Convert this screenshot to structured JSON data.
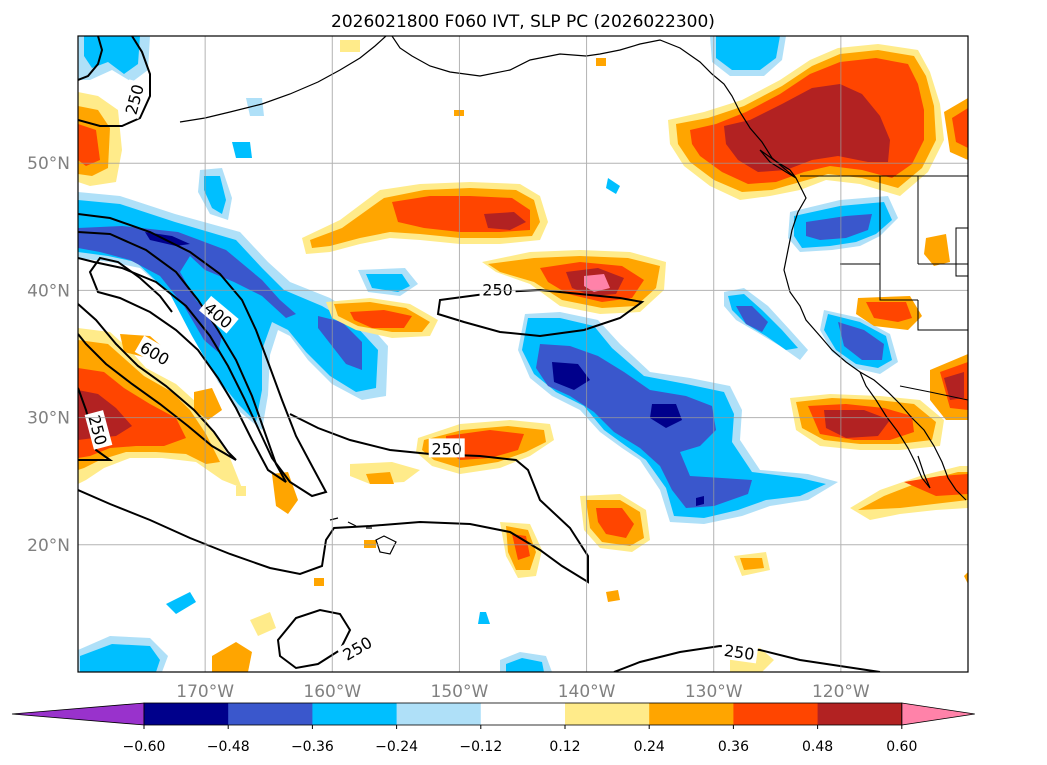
{
  "title": "2026021800 F060 IVT, SLP PC (2026022300)",
  "map": {
    "lon_range": [
      -180,
      -110
    ],
    "lat_range": [
      10,
      60
    ],
    "lon_ticks": [
      {
        "lon": -170,
        "label": "170°W"
      },
      {
        "lon": -160,
        "label": "160°W"
      },
      {
        "lon": -150,
        "label": "150°W"
      },
      {
        "lon": -140,
        "label": "140°W"
      },
      {
        "lon": -130,
        "label": "130°W"
      },
      {
        "lon": -120,
        "label": "120°W"
      }
    ],
    "lat_ticks": [
      {
        "lat": 50,
        "label": "50°N"
      },
      {
        "lat": 40,
        "label": "40°N"
      },
      {
        "lat": 30,
        "label": "30°N"
      },
      {
        "lat": 20,
        "label": "20°N"
      }
    ],
    "contour_labels": [
      {
        "text": "250",
        "lon": -175.5,
        "lat": 55.0,
        "angle": -75
      },
      {
        "text": "400",
        "lon": -169.0,
        "lat": 38.0,
        "angle": 40
      },
      {
        "text": "600",
        "lon": -174.0,
        "lat": 35.0,
        "angle": 30
      },
      {
        "text": "250",
        "lon": -178.5,
        "lat": 29.0,
        "angle": 75
      },
      {
        "text": "250",
        "lon": -147.0,
        "lat": 40.0,
        "angle": 0
      },
      {
        "text": "250",
        "lon": -151.0,
        "lat": 27.5,
        "angle": 0
      },
      {
        "text": "250",
        "lon": -158.0,
        "lat": 11.8,
        "angle": -30
      },
      {
        "text": "250",
        "lon": -128.0,
        "lat": 11.5,
        "angle": 8
      }
    ]
  },
  "colorbar": {
    "colors": [
      "#9932cc",
      "#00008b",
      "#3a57cc",
      "#00bfff",
      "#afe0f8",
      "#ffffff",
      "#ffeb8a",
      "#ffa500",
      "#ff4500",
      "#b22222",
      "#ff82a9"
    ],
    "tick_labels": [
      "−0.60",
      "−0.48",
      "−0.36",
      "−0.24",
      "−0.12",
      "0.12",
      "0.24",
      "0.36",
      "0.48",
      "0.60"
    ]
  },
  "colors": {
    "level_pos1": "#ffeb8a",
    "level_pos2": "#ffa500",
    "level_pos3": "#ff4500",
    "level_pos4": "#b22222",
    "level_pos5": "#ff82a9",
    "level_neg1": "#afe0f8",
    "level_neg2": "#00bfff",
    "level_neg3": "#3a57cc",
    "level_neg4": "#00008b"
  }
}
